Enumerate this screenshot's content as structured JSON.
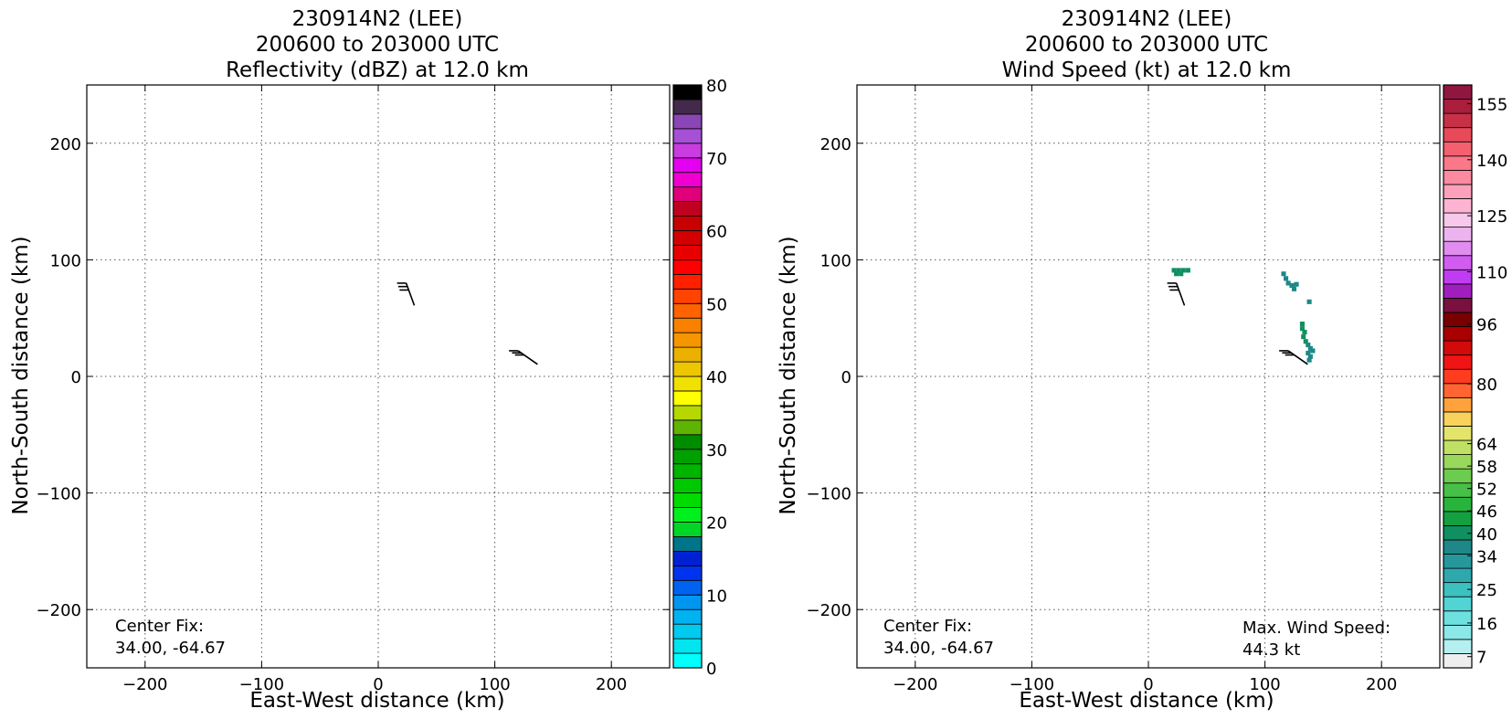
{
  "chart_data": [
    {
      "type": "heatmap",
      "title": [
        "230914N2 (LEE)",
        "200600 to 203000 UTC",
        "Reflectivity (dBZ) at 12.0 km"
      ],
      "xlabel": "East-West distance (km)",
      "ylabel": "North-South distance (km)",
      "xlim": [
        -250,
        250
      ],
      "ylim": [
        -250,
        250
      ],
      "xticks": [
        -200,
        -100,
        0,
        100,
        200
      ],
      "yticks": [
        -200,
        -100,
        0,
        100,
        200
      ],
      "xtick_labels": [
        "−200",
        "−100",
        "0",
        "100",
        "200"
      ],
      "ytick_labels": [
        "−200",
        "−100",
        "0",
        "100",
        "200"
      ],
      "grid": true,
      "annotation": {
        "lines": [
          "Center Fix:",
          "34.00, -64.67"
        ],
        "position": "bottom-left"
      },
      "colorbar": {
        "min": 0,
        "max": 80,
        "tick_values": [
          0,
          10,
          20,
          30,
          40,
          50,
          60,
          70,
          80
        ],
        "tick_labels": [
          "0",
          "10",
          "20",
          "30",
          "40",
          "50",
          "60",
          "70",
          "80"
        ],
        "colors": [
          "#00ffff",
          "#00e5ef",
          "#00caef",
          "#00b2f0",
          "#0096f0",
          "#0063f0",
          "#0033f0",
          "#0021d3",
          "#007488",
          "#00d626",
          "#00f01f",
          "#00dc00",
          "#00c800",
          "#00b400",
          "#00a000",
          "#008c00",
          "#5eb400",
          "#b4d800",
          "#ffff00",
          "#f0e100",
          "#ecc700",
          "#ecb100",
          "#f59600",
          "#f98100",
          "#ff6200",
          "#ff4300",
          "#ff2000",
          "#ff0000",
          "#e60000",
          "#d20000",
          "#c80000",
          "#c00020",
          "#e0007a",
          "#f000d0",
          "#e400f0",
          "#c83ce0",
          "#a650d8",
          "#8a46b4",
          "#442a4a",
          "#000000"
        ]
      },
      "wind_barbs": [
        {
          "x": 24,
          "y": 80,
          "u_dir_deg": 200,
          "flags": 3
        },
        {
          "x": 120,
          "y": 22,
          "u_dir_deg": 235,
          "flags": 3
        }
      ],
      "cells": []
    },
    {
      "type": "heatmap",
      "title": [
        "230914N2 (LEE)",
        "200600 to 203000 UTC",
        "Wind Speed (kt) at 12.0 km"
      ],
      "xlabel": "East-West distance (km)",
      "ylabel": "North-South distance (km)",
      "xlim": [
        -250,
        250
      ],
      "ylim": [
        -250,
        250
      ],
      "xticks": [
        -200,
        -100,
        0,
        100,
        200
      ],
      "yticks": [
        -200,
        -100,
        0,
        100,
        200
      ],
      "xtick_labels": [
        "−200",
        "−100",
        "0",
        "100",
        "200"
      ],
      "ytick_labels": [
        "−200",
        "−100",
        "0",
        "100",
        "200"
      ],
      "grid": true,
      "annotation": {
        "lines": [
          "Center Fix:",
          "34.00, -64.67"
        ],
        "position": "bottom-left"
      },
      "max_annotation": {
        "lines": [
          "Max. Wind Speed:",
          "44.3 kt"
        ],
        "position": "bottom-right"
      },
      "colorbar": {
        "min": 4,
        "max": 160,
        "tick_values": [
          7,
          16,
          25,
          34,
          40,
          46,
          52,
          58,
          64,
          80,
          96,
          110,
          125,
          140,
          155
        ],
        "tick_labels": [
          "7",
          "16",
          "25",
          "34",
          "40",
          "46",
          "52",
          "58",
          "64",
          "80",
          "96",
          "110",
          "125",
          "140",
          "155"
        ],
        "colors": [
          "#eeeeee",
          "#b4f0f0",
          "#8ce8e8",
          "#6ee0e0",
          "#52d4d4",
          "#3cc0c0",
          "#2ea8ad",
          "#26989c",
          "#1e8888",
          "#109060",
          "#14a040",
          "#28b43c",
          "#46c046",
          "#6ccc50",
          "#98d85a",
          "#c0e064",
          "#e4e46a",
          "#f8d25a",
          "#ffa23c",
          "#ff6432",
          "#ff3c1e",
          "#f01414",
          "#d20a0a",
          "#aa0000",
          "#780000",
          "#7a1040",
          "#a01ebe",
          "#c03cf0",
          "#d05cf0",
          "#e08cf0",
          "#ecb4ee",
          "#f8c8ec",
          "#fcb4d2",
          "#fca0bc",
          "#fc8aa0",
          "#fa7888",
          "#f46070",
          "#e84a5a",
          "#c83048",
          "#a81e3c",
          "#901640"
        ]
      },
      "wind_barbs": [
        {
          "x": 24,
          "y": 80,
          "u_dir_deg": 200,
          "flags": 3
        },
        {
          "x": 120,
          "y": 22,
          "u_dir_deg": 235,
          "flags": 3
        }
      ],
      "cells": [
        {
          "x": 22,
          "y": 91,
          "v": 40
        },
        {
          "x": 26,
          "y": 91,
          "v": 40
        },
        {
          "x": 30,
          "y": 91,
          "v": 40
        },
        {
          "x": 34,
          "y": 91,
          "v": 40
        },
        {
          "x": 24,
          "y": 88,
          "v": 40
        },
        {
          "x": 28,
          "y": 88,
          "v": 40
        },
        {
          "x": 116,
          "y": 88,
          "v": 38
        },
        {
          "x": 118,
          "y": 84,
          "v": 38
        },
        {
          "x": 120,
          "y": 80,
          "v": 38
        },
        {
          "x": 123,
          "y": 78,
          "v": 38
        },
        {
          "x": 125,
          "y": 75,
          "v": 38
        },
        {
          "x": 127,
          "y": 79,
          "v": 38
        },
        {
          "x": 138,
          "y": 64,
          "v": 38
        },
        {
          "x": 132,
          "y": 45,
          "v": 42
        },
        {
          "x": 132,
          "y": 41,
          "v": 42
        },
        {
          "x": 134,
          "y": 38,
          "v": 42
        },
        {
          "x": 133,
          "y": 34,
          "v": 42
        },
        {
          "x": 135,
          "y": 30,
          "v": 40
        },
        {
          "x": 137,
          "y": 27,
          "v": 38
        },
        {
          "x": 139,
          "y": 24,
          "v": 36
        },
        {
          "x": 141,
          "y": 22,
          "v": 36
        },
        {
          "x": 137,
          "y": 20,
          "v": 38
        },
        {
          "x": 139,
          "y": 17,
          "v": 36
        },
        {
          "x": 138,
          "y": 14,
          "v": 38
        }
      ]
    }
  ]
}
